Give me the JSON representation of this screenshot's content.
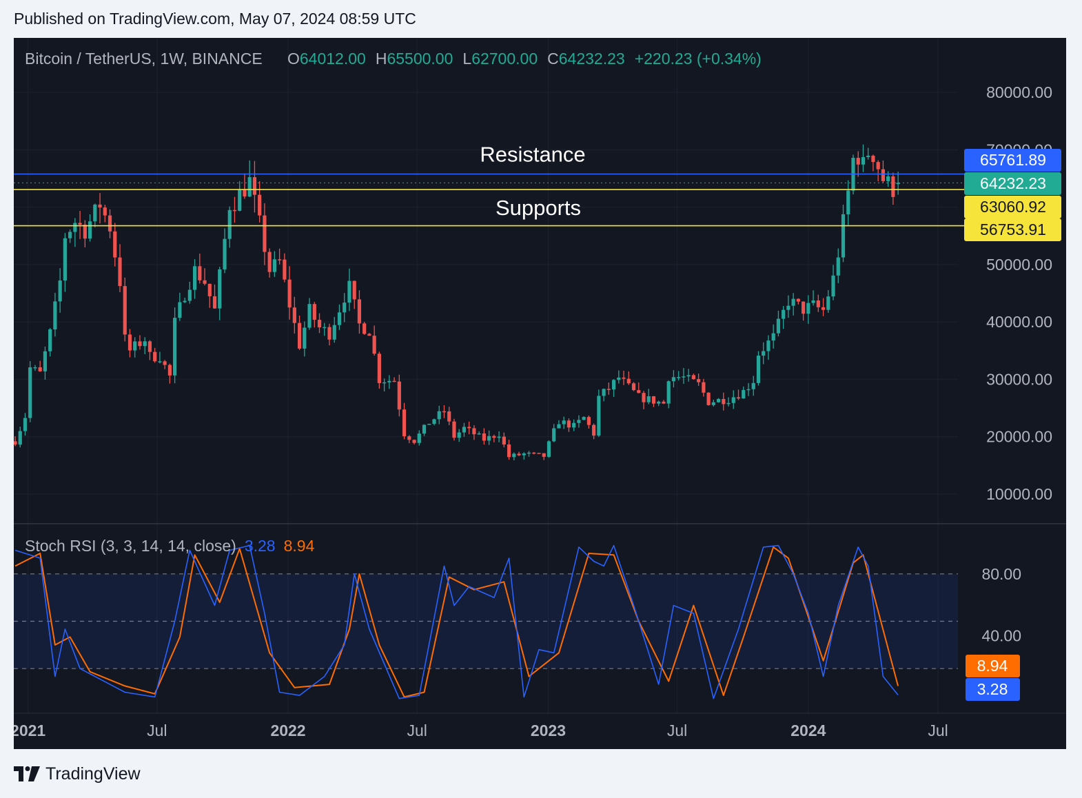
{
  "published": "Published on TradingView.com, May 07, 2024 08:59 UTC",
  "brand": {
    "name": "TradingView",
    "logo_icon": "tradingview-logo-icon"
  },
  "colors": {
    "background": "#131722",
    "up": "#26a69a",
    "down": "#ef5350",
    "resistance": "#2962ff",
    "support": "#f7e43b",
    "last_price": "#22ab94",
    "stoch_k": "#2962ff",
    "stoch_d": "#ff6d00",
    "text": "#b2b5be"
  },
  "chart_data": {
    "type": "candlestick",
    "symbol": "Bitcoin / TetherUS",
    "interval": "1W",
    "exchange": "BINANCE",
    "ohlc_legend": {
      "o_label": "O",
      "o": "64012.00",
      "h_label": "H",
      "h": "65500.00",
      "l_label": "L",
      "l": "62700.00",
      "c_label": "C",
      "c": "64232.23",
      "change": "+220.23 (+0.34%)"
    },
    "price_axis": {
      "ticks": [
        "80000.00",
        "70000.00",
        "50000.00",
        "40000.00",
        "30000.00",
        "20000.00",
        "10000.00"
      ],
      "ylim": [
        3000,
        83000
      ]
    },
    "time_axis": {
      "ticks": [
        "2021",
        "Jul",
        "2022",
        "Jul",
        "2023",
        "Jul",
        "2024",
        "Jul"
      ],
      "range": [
        "2020-12-14",
        "2024-07-29"
      ]
    },
    "levels": [
      {
        "kind": "resistance",
        "value": 65761.89,
        "label": "65761.89",
        "annotation": "Resistance"
      },
      {
        "kind": "last",
        "value": 64232.23,
        "label": "64232.23",
        "annotation": ""
      },
      {
        "kind": "support",
        "value": 63060.92,
        "label": "63060.92",
        "annotation": "Supports"
      },
      {
        "kind": "support",
        "value": 56753.91,
        "label": "56753.91",
        "annotation": ""
      }
    ],
    "anchors": [
      [
        "2020-12-14",
        19200
      ],
      [
        "2020-12-28",
        23500
      ],
      [
        "2021-01-04",
        32000
      ],
      [
        "2021-01-18",
        31000
      ],
      [
        "2021-02-01",
        38000
      ],
      [
        "2021-02-15",
        47000
      ],
      [
        "2021-02-22",
        55000
      ],
      [
        "2021-03-08",
        57500
      ],
      [
        "2021-03-22",
        56000
      ],
      [
        "2021-04-12",
        60500
      ],
      [
        "2021-04-26",
        56500
      ],
      [
        "2021-05-10",
        47000
      ],
      [
        "2021-05-17",
        37000
      ],
      [
        "2021-05-24",
        35000
      ],
      [
        "2021-06-14",
        37000
      ],
      [
        "2021-06-21",
        34000
      ],
      [
        "2021-07-05",
        34000
      ],
      [
        "2021-07-19",
        30500
      ],
      [
        "2021-07-26",
        39800
      ],
      [
        "2021-08-09",
        45000
      ],
      [
        "2021-08-23",
        49000
      ],
      [
        "2021-09-06",
        47000
      ],
      [
        "2021-09-20",
        42000
      ],
      [
        "2021-09-27",
        48000
      ],
      [
        "2021-10-11",
        60500
      ],
      [
        "2021-10-18",
        61000
      ],
      [
        "2021-11-08",
        64500
      ],
      [
        "2021-11-22",
        57000
      ],
      [
        "2021-12-06",
        49000
      ],
      [
        "2021-12-20",
        50500
      ],
      [
        "2022-01-03",
        43000
      ],
      [
        "2022-01-17",
        36000
      ],
      [
        "2022-01-31",
        42000
      ],
      [
        "2022-02-14",
        39000
      ],
      [
        "2022-02-28",
        38000
      ],
      [
        "2022-03-21",
        44500
      ],
      [
        "2022-03-28",
        46000
      ],
      [
        "2022-04-11",
        39500
      ],
      [
        "2022-04-25",
        38500
      ],
      [
        "2022-05-09",
        30000
      ],
      [
        "2022-05-30",
        29800
      ],
      [
        "2022-06-13",
        20500
      ],
      [
        "2022-06-27",
        19300
      ],
      [
        "2022-07-18",
        22500
      ],
      [
        "2022-08-08",
        24500
      ],
      [
        "2022-08-22",
        20000
      ],
      [
        "2022-09-05",
        21500
      ],
      [
        "2022-10-03",
        19500
      ],
      [
        "2022-10-24",
        20500
      ],
      [
        "2022-11-07",
        16500
      ],
      [
        "2022-11-28",
        17000
      ],
      [
        "2022-12-26",
        16600
      ],
      [
        "2023-01-09",
        20900
      ],
      [
        "2023-01-16",
        22700
      ],
      [
        "2023-02-06",
        21800
      ],
      [
        "2023-02-20",
        23300
      ],
      [
        "2023-03-06",
        20500
      ],
      [
        "2023-03-13",
        26900
      ],
      [
        "2023-03-27",
        28400
      ],
      [
        "2023-04-10",
        30300
      ],
      [
        "2023-05-08",
        26900
      ],
      [
        "2023-06-12",
        25800
      ],
      [
        "2023-06-19",
        30500
      ],
      [
        "2023-07-10",
        30300
      ],
      [
        "2023-07-31",
        29100
      ],
      [
        "2023-08-14",
        26100
      ],
      [
        "2023-09-11",
        26600
      ],
      [
        "2023-10-02",
        27900
      ],
      [
        "2023-10-16",
        29800
      ],
      [
        "2023-10-23",
        34500
      ],
      [
        "2023-11-13",
        37300
      ],
      [
        "2023-12-04",
        43700
      ],
      [
        "2023-12-25",
        42200
      ],
      [
        "2024-01-08",
        42800
      ],
      [
        "2024-01-22",
        42000
      ],
      [
        "2024-02-05",
        47500
      ],
      [
        "2024-02-12",
        52000
      ],
      [
        "2024-02-26",
        62500
      ],
      [
        "2024-03-04",
        68300
      ],
      [
        "2024-03-11",
        69000
      ],
      [
        "2024-03-18",
        67200
      ],
      [
        "2024-03-25",
        69600
      ],
      [
        "2024-04-01",
        69300
      ],
      [
        "2024-04-15",
        64900
      ],
      [
        "2024-04-29",
        63200
      ],
      [
        "2024-05-06",
        64232
      ]
    ],
    "stoch_rsi": {
      "label": "Stoch RSI (3, 3, 14, 14, close)",
      "k_value": "3.28",
      "d_value": "8.94",
      "ticks": [
        "80.00",
        "40.00"
      ],
      "bands": [
        20,
        50,
        80
      ],
      "ylim": [
        0,
        100
      ],
      "k_anchors": [
        [
          "2020-12-14",
          95
        ],
        [
          "2021-01-18",
          90
        ],
        [
          "2021-02-08",
          15
        ],
        [
          "2021-02-22",
          45
        ],
        [
          "2021-03-15",
          20
        ],
        [
          "2021-04-26",
          10
        ],
        [
          "2021-05-17",
          5
        ],
        [
          "2021-06-28",
          2
        ],
        [
          "2021-07-26",
          50
        ],
        [
          "2021-08-16",
          95
        ],
        [
          "2021-09-20",
          60
        ],
        [
          "2021-10-11",
          95
        ],
        [
          "2021-11-08",
          98
        ],
        [
          "2021-11-29",
          55
        ],
        [
          "2021-12-20",
          5
        ],
        [
          "2022-01-17",
          3
        ],
        [
          "2022-02-21",
          15
        ],
        [
          "2022-03-21",
          35
        ],
        [
          "2022-04-04",
          80
        ],
        [
          "2022-04-25",
          45
        ],
        [
          "2022-06-06",
          1
        ],
        [
          "2022-07-04",
          3
        ],
        [
          "2022-08-08",
          85
        ],
        [
          "2022-08-22",
          60
        ],
        [
          "2022-09-12",
          72
        ],
        [
          "2022-10-17",
          65
        ],
        [
          "2022-11-07",
          90
        ],
        [
          "2022-11-28",
          2
        ],
        [
          "2022-12-19",
          32
        ],
        [
          "2023-01-09",
          30
        ],
        [
          "2023-02-13",
          97
        ],
        [
          "2023-03-06",
          88
        ],
        [
          "2023-03-20",
          85
        ],
        [
          "2023-04-03",
          98
        ],
        [
          "2023-05-01",
          60
        ],
        [
          "2023-06-05",
          10
        ],
        [
          "2023-06-26",
          60
        ],
        [
          "2023-07-24",
          55
        ],
        [
          "2023-08-21",
          1
        ],
        [
          "2023-09-25",
          45
        ],
        [
          "2023-10-30",
          97
        ],
        [
          "2023-11-20",
          98
        ],
        [
          "2023-12-11",
          80
        ],
        [
          "2024-01-01",
          55
        ],
        [
          "2024-01-22",
          15
        ],
        [
          "2024-02-12",
          60
        ],
        [
          "2024-03-11",
          97
        ],
        [
          "2024-03-25",
          85
        ],
        [
          "2024-04-15",
          15
        ],
        [
          "2024-05-06",
          3.28
        ]
      ],
      "d_anchors": [
        [
          "2020-12-14",
          85
        ],
        [
          "2021-01-18",
          93
        ],
        [
          "2021-02-08",
          35
        ],
        [
          "2021-03-01",
          40
        ],
        [
          "2021-03-29",
          18
        ],
        [
          "2021-05-17",
          9
        ],
        [
          "2021-06-28",
          4
        ],
        [
          "2021-08-02",
          40
        ],
        [
          "2021-08-23",
          92
        ],
        [
          "2021-09-27",
          62
        ],
        [
          "2021-10-25",
          96
        ],
        [
          "2021-12-06",
          30
        ],
        [
          "2022-01-10",
          8
        ],
        [
          "2022-02-28",
          10
        ],
        [
          "2022-03-28",
          45
        ],
        [
          "2022-04-11",
          80
        ],
        [
          "2022-05-09",
          35
        ],
        [
          "2022-06-13",
          2
        ],
        [
          "2022-07-11",
          5
        ],
        [
          "2022-08-15",
          78
        ],
        [
          "2022-09-19",
          70
        ],
        [
          "2022-10-31",
          75
        ],
        [
          "2022-12-05",
          15
        ],
        [
          "2023-01-16",
          30
        ],
        [
          "2023-02-27",
          93
        ],
        [
          "2023-04-03",
          92
        ],
        [
          "2023-05-08",
          50
        ],
        [
          "2023-06-19",
          12
        ],
        [
          "2023-07-24",
          60
        ],
        [
          "2023-09-04",
          3
        ],
        [
          "2023-10-02",
          40
        ],
        [
          "2023-11-13",
          97
        ],
        [
          "2023-12-04",
          90
        ],
        [
          "2024-01-22",
          25
        ],
        [
          "2024-03-04",
          87
        ],
        [
          "2024-03-18",
          92
        ],
        [
          "2024-05-06",
          8.94
        ]
      ]
    }
  }
}
